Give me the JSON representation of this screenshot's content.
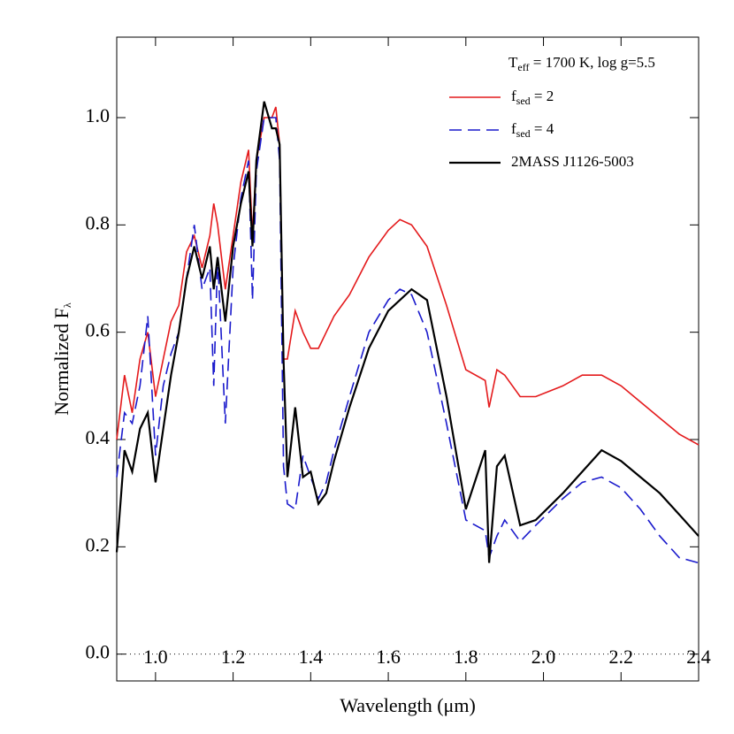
{
  "chart_data": {
    "type": "line",
    "annotation": [
      "T",
      "eff",
      " = 1700 K, log g=5.5"
    ],
    "xlabel": "Wavelength (μm)",
    "ylabel": [
      "Normalized F",
      "λ"
    ],
    "xlim": [
      0.9,
      2.4
    ],
    "ylim": [
      -0.05,
      1.15
    ],
    "xticks": [
      {
        "value": 1,
        "label": "1.0"
      },
      1.2,
      1.4,
      1.6,
      1.8,
      {
        "value": 2,
        "label": "2.0"
      },
      2.2,
      2.4
    ],
    "yticks": [
      {
        "value": 0,
        "label": "0.0"
      },
      0.2,
      0.4,
      0.6,
      0.8,
      {
        "value": 1,
        "label": "1.0"
      }
    ],
    "reference_line": {
      "value": 0,
      "style": "dotted"
    },
    "x": [
      0.9,
      0.92,
      0.94,
      0.96,
      0.98,
      1.0,
      1.02,
      1.04,
      1.06,
      1.08,
      1.1,
      1.12,
      1.14,
      1.15,
      1.16,
      1.18,
      1.2,
      1.22,
      1.24,
      1.25,
      1.26,
      1.28,
      1.3,
      1.31,
      1.32,
      1.33,
      1.34,
      1.36,
      1.38,
      1.4,
      1.42,
      1.44,
      1.46,
      1.5,
      1.55,
      1.6,
      1.63,
      1.66,
      1.7,
      1.75,
      1.8,
      1.85,
      1.86,
      1.88,
      1.9,
      1.94,
      1.98,
      2.05,
      2.1,
      2.15,
      2.2,
      2.25,
      2.3,
      2.35,
      2.4
    ],
    "series": [
      {
        "name": [
          "f",
          "sed",
          " = 2"
        ],
        "color": "#e41a1c",
        "dash": "solid",
        "values": [
          0.4,
          0.52,
          0.45,
          0.55,
          0.6,
          0.48,
          0.55,
          0.62,
          0.65,
          0.75,
          0.78,
          0.72,
          0.78,
          0.84,
          0.8,
          0.68,
          0.78,
          0.88,
          0.94,
          0.78,
          0.92,
          1.0,
          1.0,
          1.02,
          0.95,
          0.55,
          0.55,
          0.64,
          0.6,
          0.57,
          0.57,
          0.6,
          0.63,
          0.67,
          0.74,
          0.79,
          0.81,
          0.8,
          0.76,
          0.65,
          0.53,
          0.51,
          0.46,
          0.53,
          0.52,
          0.48,
          0.48,
          0.5,
          0.52,
          0.52,
          0.5,
          0.47,
          0.44,
          0.41,
          0.39
        ]
      },
      {
        "name": [
          "f",
          "sed",
          " = 4"
        ],
        "color": "#1a1acc",
        "dash": "dashed",
        "values": [
          0.33,
          0.45,
          0.43,
          0.5,
          0.63,
          0.37,
          0.5,
          0.56,
          0.6,
          0.7,
          0.8,
          0.68,
          0.72,
          0.5,
          0.74,
          0.43,
          0.72,
          0.85,
          0.92,
          0.66,
          0.9,
          1.0,
          1.0,
          1.0,
          0.92,
          0.35,
          0.28,
          0.27,
          0.37,
          0.33,
          0.29,
          0.32,
          0.38,
          0.48,
          0.6,
          0.66,
          0.68,
          0.67,
          0.6,
          0.43,
          0.25,
          0.23,
          0.18,
          0.22,
          0.25,
          0.21,
          0.24,
          0.29,
          0.32,
          0.33,
          0.31,
          0.27,
          0.22,
          0.18,
          0.17
        ]
      },
      {
        "name": [
          "2MASS J1126-5003"
        ],
        "color": "#000000",
        "dash": "solid",
        "values": [
          0.19,
          0.38,
          0.34,
          0.42,
          0.45,
          0.32,
          0.42,
          0.52,
          0.6,
          0.7,
          0.76,
          0.7,
          0.76,
          0.68,
          0.74,
          0.62,
          0.76,
          0.84,
          0.9,
          0.76,
          0.92,
          1.03,
          0.98,
          0.98,
          0.95,
          0.55,
          0.33,
          0.46,
          0.33,
          0.34,
          0.28,
          0.3,
          0.36,
          0.46,
          0.57,
          0.64,
          0.66,
          0.68,
          0.66,
          0.48,
          0.27,
          0.38,
          0.17,
          0.35,
          0.37,
          0.24,
          0.25,
          0.3,
          0.34,
          0.38,
          0.36,
          0.33,
          0.3,
          0.26,
          0.22
        ]
      }
    ]
  }
}
